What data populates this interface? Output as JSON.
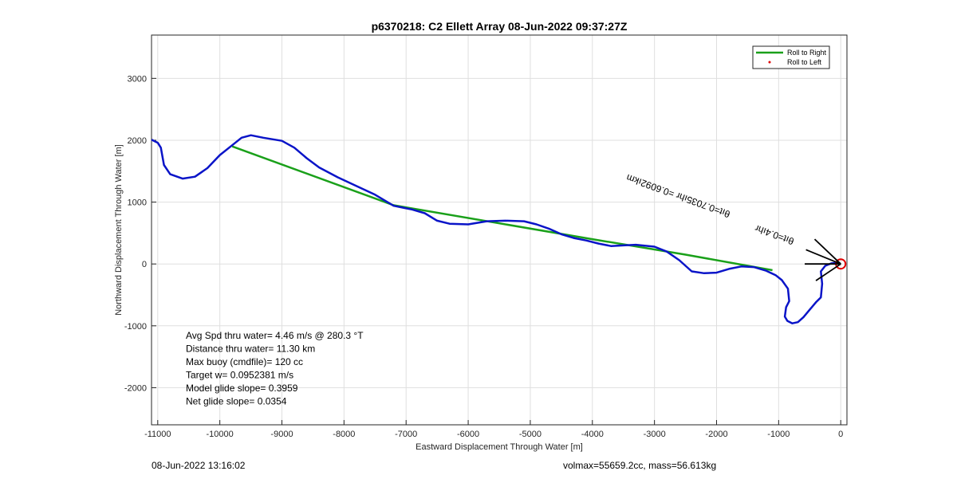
{
  "chart_data": {
    "type": "line",
    "title": "p6370218: C2 Ellett Array 08-Jun-2022 09:37:27Z",
    "xlabel": "Eastward Displacement Through Water [m]",
    "ylabel": "Northward Displacement Through Water [m]",
    "xlim": [
      -11100,
      100
    ],
    "ylim": [
      -2600,
      3700
    ],
    "xticks": [
      -11000,
      -10000,
      -9000,
      -8000,
      -7000,
      -6000,
      -5000,
      -4000,
      -3000,
      -2000,
      -1000,
      0
    ],
    "yticks": [
      -2000,
      -1000,
      0,
      1000,
      2000,
      3000
    ],
    "grid": true,
    "legend_position": "top-right",
    "series": [
      {
        "name": "Roll to Right",
        "color": "#1aa01a",
        "x": [
          -9800,
          -7200,
          -4000,
          -2500,
          -1100
        ],
        "y": [
          1900,
          950,
          400,
          150,
          -100
        ]
      },
      {
        "name": "Roll to Left",
        "color": "#e00000",
        "x": [
          -20
        ],
        "y": [
          0
        ]
      },
      {
        "name": "",
        "color": "#0a14c8",
        "x": [
          -11100,
          -11000,
          -10950,
          -10900,
          -10800,
          -10600,
          -10400,
          -10200,
          -10000,
          -9800,
          -9650,
          -9500,
          -9300,
          -9000,
          -8800,
          -8600,
          -8400,
          -8100,
          -7800,
          -7500,
          -7200,
          -6900,
          -6700,
          -6500,
          -6300,
          -6000,
          -5700,
          -5400,
          -5100,
          -4900,
          -4700,
          -4500,
          -4300,
          -4100,
          -3900,
          -3700,
          -3500,
          -3300,
          -3000,
          -2800,
          -2600,
          -2400,
          -2200,
          -2000,
          -1800,
          -1600,
          -1400,
          -1200,
          -1050,
          -950,
          -850,
          -830,
          -880,
          -900,
          -860,
          -780,
          -690,
          -600,
          -500,
          -400,
          -320,
          -300,
          -320,
          -250,
          -150,
          -50,
          -20
        ],
        "y": [
          2010,
          1960,
          1880,
          1600,
          1450,
          1380,
          1410,
          1550,
          1760,
          1920,
          2040,
          2080,
          2040,
          1990,
          1880,
          1710,
          1560,
          1400,
          1260,
          1120,
          940,
          880,
          820,
          700,
          650,
          640,
          690,
          700,
          690,
          640,
          570,
          480,
          420,
          380,
          330,
          290,
          300,
          310,
          280,
          200,
          60,
          -120,
          -150,
          -140,
          -80,
          -40,
          -50,
          -110,
          -180,
          -260,
          -400,
          -600,
          -700,
          -850,
          -920,
          -960,
          -940,
          -860,
          -740,
          -620,
          -540,
          -320,
          -120,
          -30,
          10,
          20,
          0
        ]
      }
    ],
    "annotations": [
      {
        "text": "Avg Spd thru water=  4.46 m/s @ 280.3 °T"
      },
      {
        "text": "Distance thru water= 11.30 km"
      },
      {
        "text": "Max buoy (cmdfile)= 120 cc"
      },
      {
        "text": "Target w= 0.0952381 m/s"
      },
      {
        "text": "Model glide slope= 0.3959"
      },
      {
        "text": "Net glide slope= 0.0354"
      }
    ],
    "rotated_labels": [
      {
        "text": "θıt=0.7035ıhr =0.6092ıkm"
      },
      {
        "text": "θıt=0.4ıhr"
      }
    ]
  },
  "footer": {
    "left": "08-Jun-2022 13:16:02",
    "right": "volmax=55659.2cc, mass=56.613kg"
  }
}
